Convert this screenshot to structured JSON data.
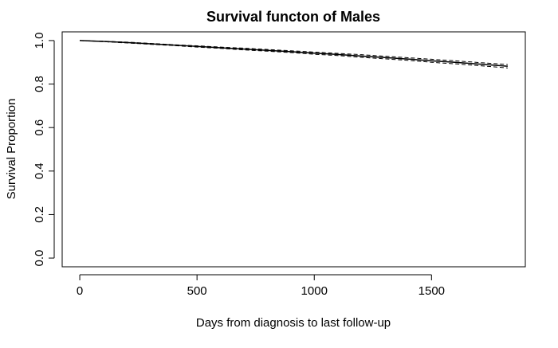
{
  "chart_data": {
    "type": "line",
    "title": "Survival functon of Males",
    "xlabel": "Days from diagnosis to last follow-up",
    "ylabel": "Survival Proportion",
    "xlim": [
      -75,
      1900
    ],
    "ylim": [
      -0.04,
      1.04
    ],
    "xticks": [
      0,
      500,
      1000,
      1500
    ],
    "xtick_labels": [
      "0",
      "500",
      "1000",
      "1500"
    ],
    "yticks": [
      0.0,
      0.2,
      0.4,
      0.6,
      0.8,
      1.0
    ],
    "ytick_labels": [
      "0.0",
      "0.2",
      "0.4",
      "0.6",
      "0.8",
      "1.0"
    ],
    "grid": false,
    "legend": "none",
    "line_color": "#000000",
    "series": [
      {
        "style": "solid",
        "x": [
          0,
          100,
          200,
          300,
          400,
          500,
          600,
          700,
          800,
          900,
          1000,
          1100,
          1200,
          1300,
          1400,
          1500,
          1600,
          1700,
          1825
        ],
        "y": [
          1.0,
          0.996,
          0.991,
          0.985,
          0.979,
          0.973,
          0.967,
          0.961,
          0.955,
          0.949,
          0.942,
          0.936,
          0.929,
          0.922,
          0.915,
          0.907,
          0.9,
          0.892,
          0.882
        ]
      },
      {
        "style": "dashed",
        "x": [
          0,
          100,
          200,
          300,
          400,
          500,
          600,
          700,
          800,
          900,
          1000,
          1100,
          1200,
          1300,
          1400,
          1500,
          1600,
          1700,
          1825
        ],
        "y": [
          1.0,
          0.997,
          0.993,
          0.987,
          0.981,
          0.976,
          0.97,
          0.965,
          0.959,
          0.953,
          0.947,
          0.941,
          0.935,
          0.928,
          0.921,
          0.914,
          0.907,
          0.899,
          0.89
        ]
      },
      {
        "style": "dashed",
        "x": [
          0,
          100,
          200,
          300,
          400,
          500,
          600,
          700,
          800,
          900,
          1000,
          1100,
          1200,
          1300,
          1400,
          1500,
          1600,
          1700,
          1825
        ],
        "y": [
          1.0,
          0.995,
          0.989,
          0.983,
          0.977,
          0.97,
          0.964,
          0.957,
          0.951,
          0.945,
          0.937,
          0.931,
          0.923,
          0.916,
          0.909,
          0.9,
          0.893,
          0.885,
          0.874
        ]
      }
    ]
  }
}
